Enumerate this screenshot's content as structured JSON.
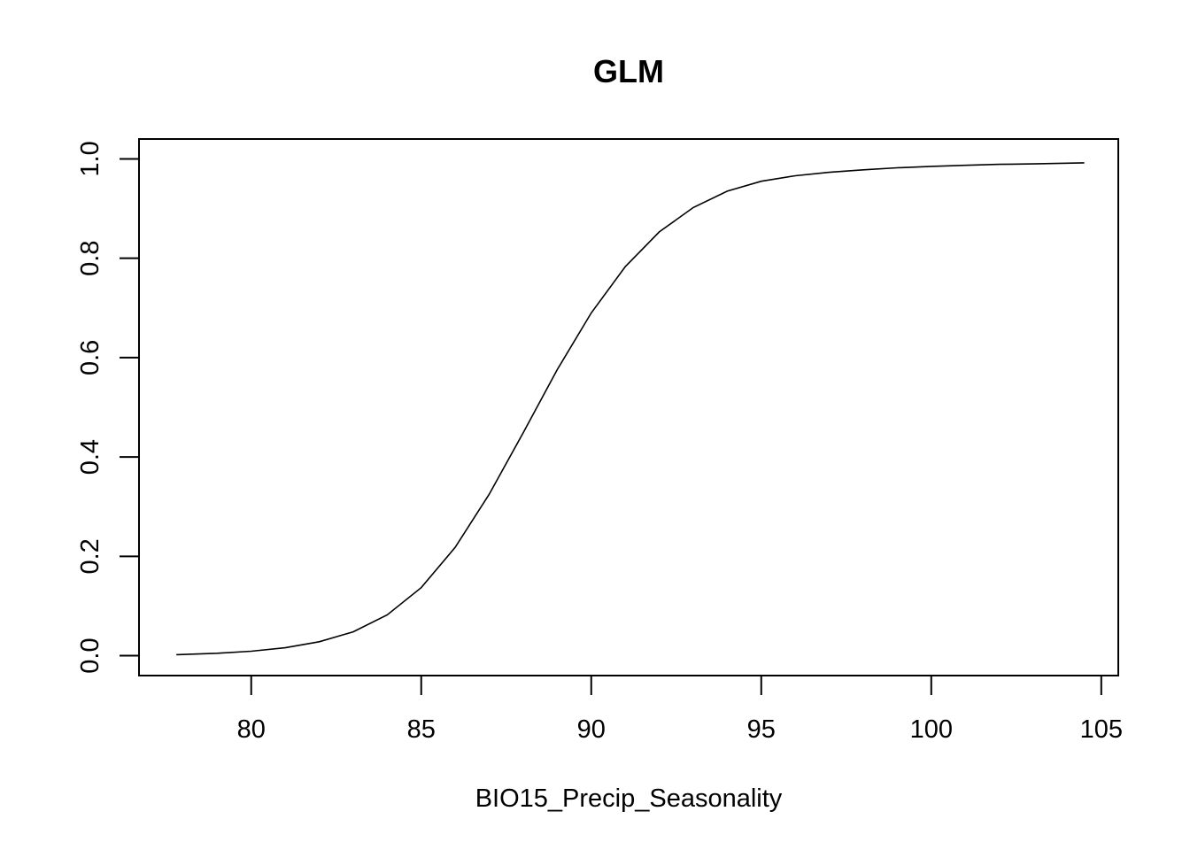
{
  "chart_data": {
    "type": "line",
    "title": "GLM",
    "xlabel": "BIO15_Precip_Seasonality",
    "ylabel": "",
    "xlim": [
      76.7,
      105.5
    ],
    "ylim": [
      -0.04,
      1.04
    ],
    "xticks": [
      80,
      85,
      90,
      95,
      100,
      105
    ],
    "yticks": [
      0.0,
      0.2,
      0.4,
      0.6,
      0.8,
      1.0
    ],
    "xtick_labels": [
      "80",
      "85",
      "90",
      "95",
      "100",
      "105"
    ],
    "ytick_labels": [
      "0.0",
      "0.2",
      "0.4",
      "0.6",
      "0.8",
      "1.0"
    ],
    "grid": false,
    "legend": "none",
    "series": [
      {
        "x": [
          77.8,
          79.0,
          80.0,
          81.0,
          82.0,
          83.0,
          84.0,
          85.0,
          86.0,
          87.0,
          88.0,
          89.0,
          90.0,
          91.0,
          92.0,
          93.0,
          94.0,
          95.0,
          96.0,
          97.0,
          98.0,
          99.0,
          100.0,
          101.0,
          102.0,
          103.0,
          104.5
        ],
        "y": [
          0.002,
          0.005,
          0.009,
          0.016,
          0.028,
          0.048,
          0.082,
          0.137,
          0.218,
          0.325,
          0.449,
          0.576,
          0.69,
          0.783,
          0.853,
          0.902,
          0.935,
          0.955,
          0.966,
          0.973,
          0.978,
          0.982,
          0.985,
          0.987,
          0.989,
          0.99,
          0.992
        ]
      }
    ]
  }
}
